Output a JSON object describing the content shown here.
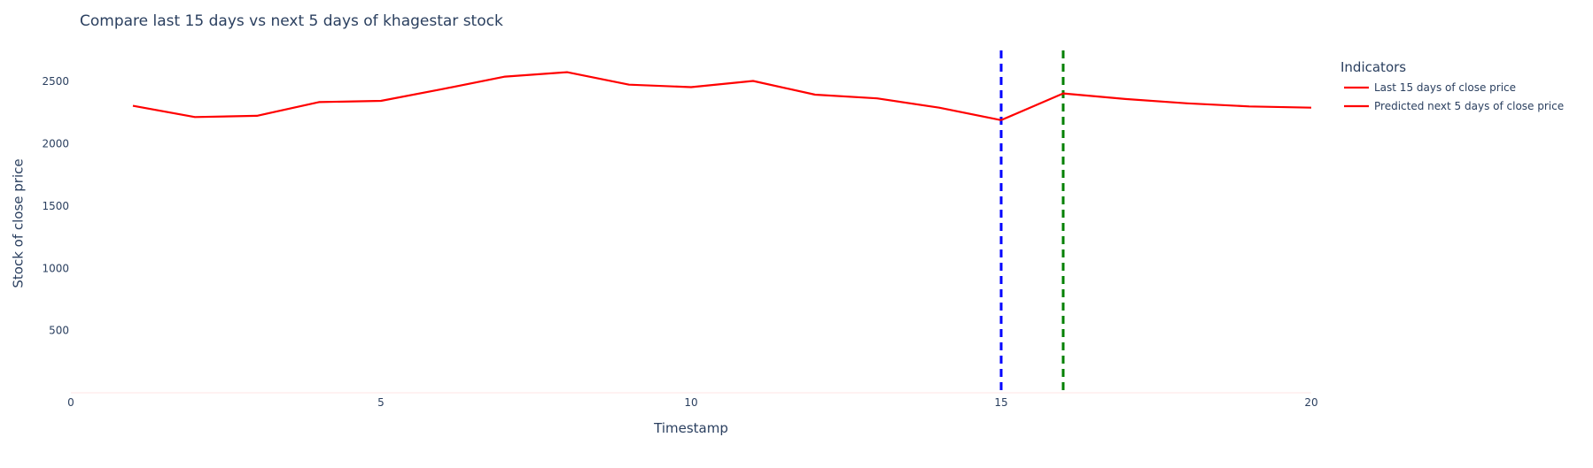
{
  "chart_data": {
    "type": "line",
    "title": "Compare last 15 days vs next 5 days of khagestar stock",
    "xlabel": "Timestamp",
    "ylabel": "Stock of close price",
    "xlim": [
      0,
      20
    ],
    "ylim": [
      0,
      2750
    ],
    "x_ticks": [
      0,
      5,
      10,
      15,
      20
    ],
    "y_ticks": [
      500,
      1000,
      1500,
      2000,
      2500
    ],
    "grid": false,
    "legend": {
      "title": "Indicators",
      "placement": "top-right",
      "entries": [
        "Last 15 days of close price",
        "Predicted next 5 days of close price"
      ]
    },
    "series": [
      {
        "name": "Last 15 days of close price",
        "color": "#ff0000",
        "x": [
          1,
          2,
          3,
          4,
          5,
          6,
          7,
          8,
          9,
          10,
          11,
          12,
          13,
          14,
          15
        ],
        "values": [
          2305,
          2215,
          2225,
          2335,
          2345,
          2440,
          2540,
          2575,
          2475,
          2455,
          2505,
          2395,
          2365,
          2290,
          2190
        ]
      },
      {
        "name": "Predicted next 5 days of close price",
        "color": "#ff0000",
        "x": [
          15,
          16,
          17,
          18,
          19,
          20
        ],
        "values": [
          2190,
          2405,
          2360,
          2325,
          2300,
          2290
        ]
      }
    ],
    "vertical_lines": [
      {
        "x": 15,
        "color": "#0000ff",
        "style": "dashed"
      },
      {
        "x": 16,
        "color": "#008000",
        "style": "dashed"
      }
    ]
  }
}
